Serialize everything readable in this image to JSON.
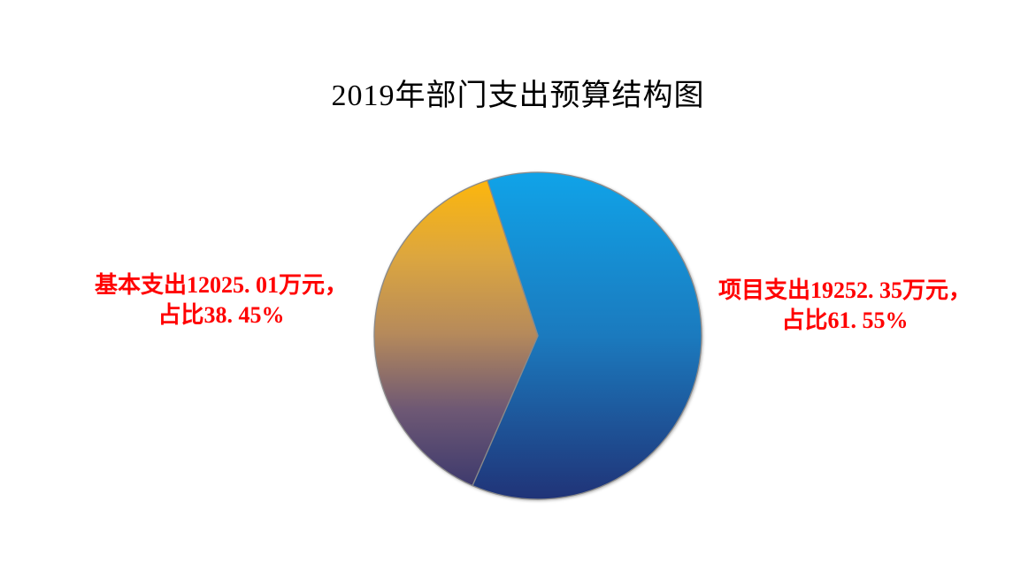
{
  "page": {
    "background": "#FFFFFF"
  },
  "chart_data": {
    "type": "pie",
    "title": "2019年部门支出预算结构图",
    "unit": "万元",
    "legend_position": "none",
    "data_label_style": "outside, red, bold, two-line",
    "title_color": "#000000",
    "label_color": "#FF0000",
    "outline_color": "#8A8A8A",
    "start_angle_deg": -18,
    "clockwise": true,
    "slices": [
      {
        "key": "project-expenditure",
        "label": "项目支出",
        "value": 19252.35,
        "percent": 61.55,
        "gradient": [
          "#10A3E8",
          "#1B7ABE",
          "#203377"
        ],
        "callout_side": "right",
        "callout_line1": "项目支出19252. 35万元，",
        "callout_line2": "占比61. 55%"
      },
      {
        "key": "basic-expenditure",
        "label": "基本支出",
        "value": 12025.01,
        "percent": 38.45,
        "gradient": [
          "#FCB60D",
          "#DCA63F",
          "#B68A5B",
          "#6E5874",
          "#3E3A6D"
        ],
        "callout_side": "left",
        "callout_line1": "基本支出12025. 01万元，",
        "callout_line2": "占比38. 45%"
      }
    ]
  }
}
